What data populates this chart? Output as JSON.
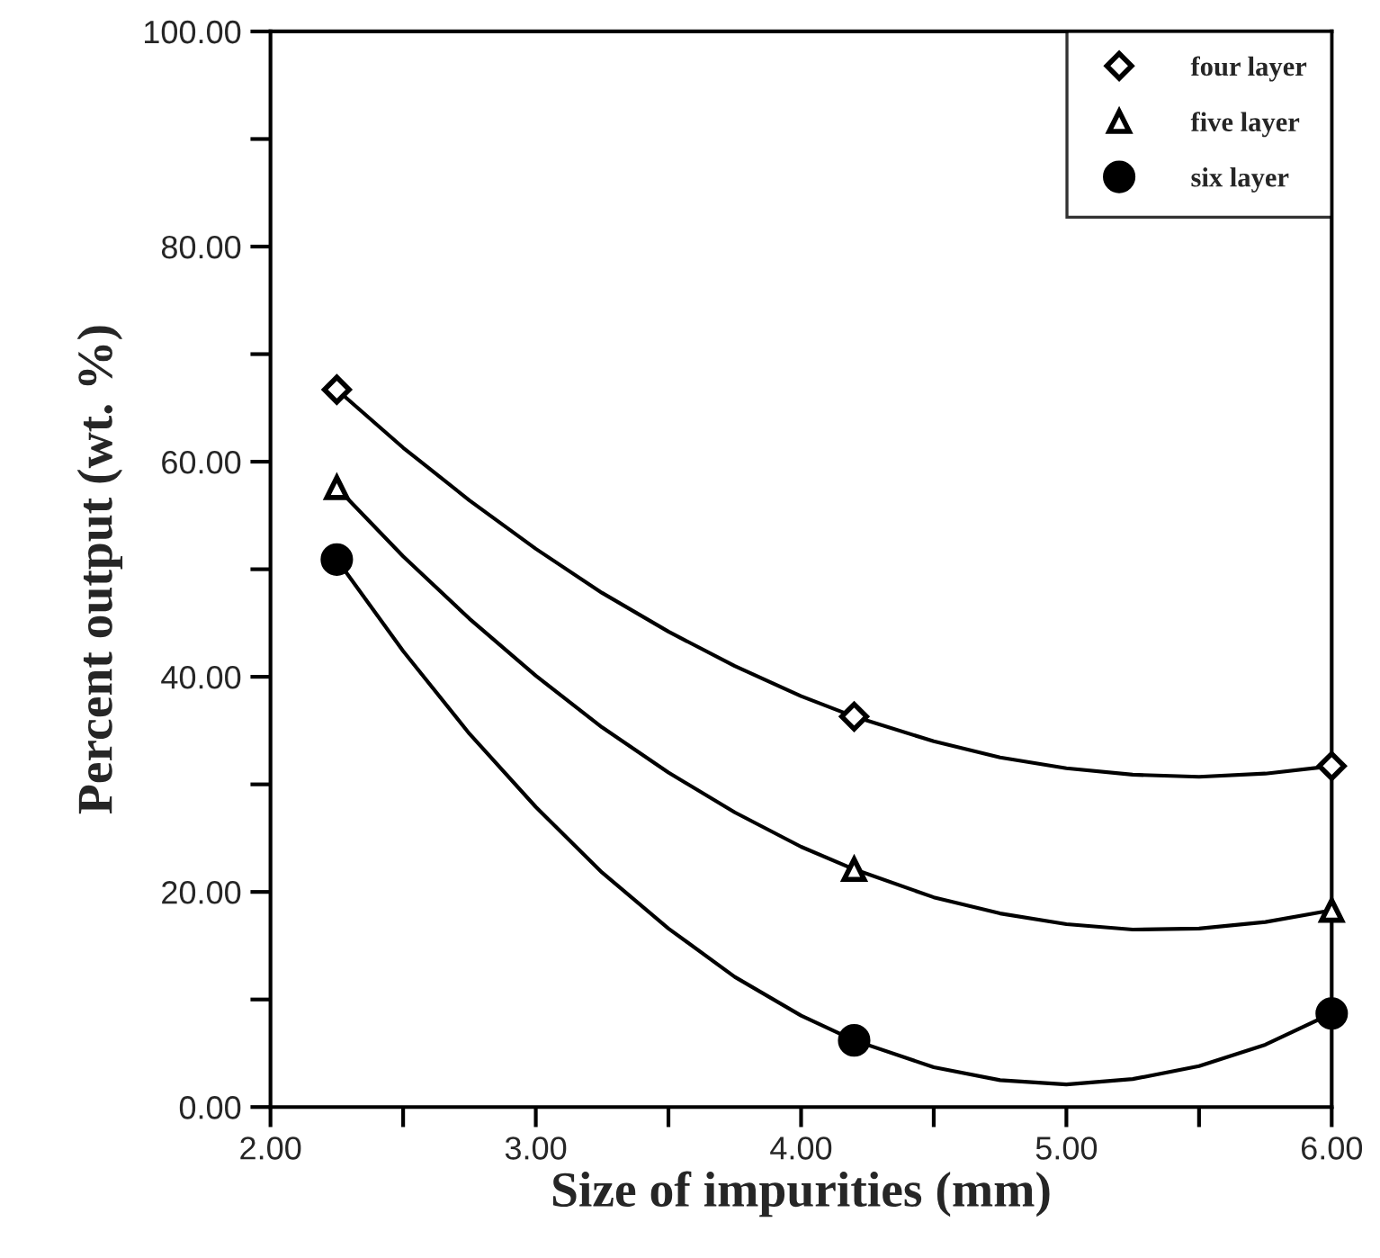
{
  "chart_data": {
    "type": "scatter",
    "xlabel": "Size of impurities (mm)",
    "ylabel": "Percent output (wt. %)",
    "xlim": [
      2.0,
      6.0
    ],
    "ylim": [
      0,
      100
    ],
    "xticks": [
      {
        "value": 2.0,
        "label": "2.00"
      },
      {
        "value": 2.5,
        "label": null
      },
      {
        "value": 3.0,
        "label": "3.00"
      },
      {
        "value": 3.5,
        "label": null
      },
      {
        "value": 4.0,
        "label": "4.00"
      },
      {
        "value": 4.5,
        "label": null
      },
      {
        "value": 5.0,
        "label": "5.00"
      },
      {
        "value": 5.5,
        "label": null
      },
      {
        "value": 6.0,
        "label": "6.00"
      }
    ],
    "yticks": [
      {
        "value": 0,
        "label": "0.00"
      },
      {
        "value": 10,
        "label": null
      },
      {
        "value": 20,
        "label": "20.00"
      },
      {
        "value": 30,
        "label": null
      },
      {
        "value": 40,
        "label": "40.00"
      },
      {
        "value": 50,
        "label": null
      },
      {
        "value": 60,
        "label": "60.00"
      },
      {
        "value": 70,
        "label": null
      },
      {
        "value": 80,
        "label": "80.00"
      },
      {
        "value": 90,
        "label": null
      },
      {
        "value": 100,
        "label": "100.00"
      }
    ],
    "grid": false,
    "legend": "top right",
    "series": [
      {
        "type": "line",
        "color": "#000000",
        "marker": "none",
        "x": [
          2.25,
          2.5,
          2.75,
          3.0,
          3.25,
          3.5,
          3.75,
          4.0,
          4.2,
          4.5,
          4.75,
          5.0,
          5.25,
          5.5,
          5.75,
          6.0
        ],
        "values": [
          66.7,
          61.3,
          56.4,
          51.9,
          47.8,
          44.2,
          41.0,
          38.2,
          36.3,
          34.0,
          32.5,
          31.5,
          30.9,
          30.7,
          31.0,
          31.7
        ]
      },
      {
        "type": "line",
        "color": "#000000",
        "marker": "none",
        "x": [
          2.25,
          2.5,
          2.75,
          3.0,
          3.25,
          3.5,
          3.75,
          4.0,
          4.2,
          4.5,
          4.75,
          5.0,
          5.25,
          5.5,
          5.75,
          6.0
        ],
        "values": [
          57.6,
          51.2,
          45.4,
          40.1,
          35.3,
          31.1,
          27.4,
          24.2,
          22.1,
          19.5,
          18.0,
          17.0,
          16.5,
          16.6,
          17.2,
          18.3
        ]
      },
      {
        "type": "line",
        "color": "#000000",
        "marker": "none",
        "x": [
          2.25,
          2.5,
          2.75,
          3.0,
          3.25,
          3.5,
          3.75,
          4.0,
          4.2,
          4.5,
          4.75,
          5.0,
          5.25,
          5.5,
          5.75,
          6.0
        ],
        "values": [
          50.9,
          42.4,
          34.7,
          27.9,
          21.8,
          16.6,
          12.1,
          8.5,
          6.2,
          3.7,
          2.5,
          2.1,
          2.6,
          3.8,
          5.8,
          8.7
        ]
      },
      {
        "name": "four layer",
        "color": "#000000",
        "marker": "diamond",
        "x": [
          2.25,
          4.2,
          6.0
        ],
        "values": [
          66.7,
          36.3,
          31.7
        ]
      },
      {
        "name": "five layer",
        "color": "#000000",
        "marker": "triangle",
        "x": [
          2.25,
          4.2,
          6.0
        ],
        "values": [
          57.6,
          22.1,
          18.3
        ]
      },
      {
        "name": "six layer",
        "color": "#000000",
        "marker": "circle",
        "x": [
          2.25,
          4.2,
          6.0
        ],
        "values": [
          50.9,
          6.2,
          8.7
        ]
      }
    ]
  }
}
